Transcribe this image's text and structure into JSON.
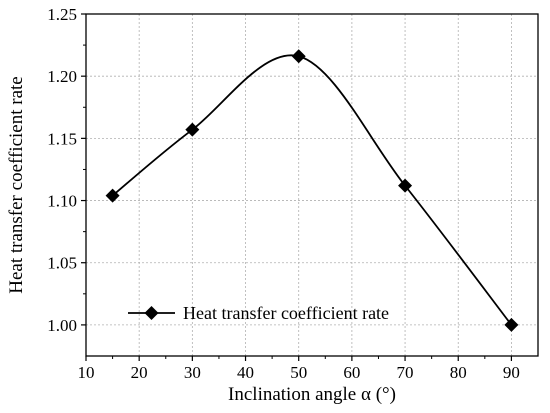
{
  "chart_data": {
    "type": "line",
    "title": "",
    "xlabel": "Inclination angle α (°)",
    "ylabel": "Heat transfer coefficient rate",
    "xlim": [
      10,
      95
    ],
    "ylim": [
      0.975,
      1.25
    ],
    "x_ticks": [
      10,
      20,
      30,
      40,
      50,
      60,
      70,
      80,
      90
    ],
    "y_ticks": [
      1.0,
      1.05,
      1.1,
      1.15,
      1.2,
      1.25
    ],
    "grid": true,
    "legend_position": "bottom-left",
    "series": [
      {
        "name": "Heat transfer coefficient rate",
        "marker": "diamond",
        "color": "#000000",
        "line": "smooth",
        "x": [
          15,
          30,
          50,
          70,
          90
        ],
        "y": [
          1.104,
          1.157,
          1.216,
          1.112,
          1.0
        ]
      }
    ]
  }
}
